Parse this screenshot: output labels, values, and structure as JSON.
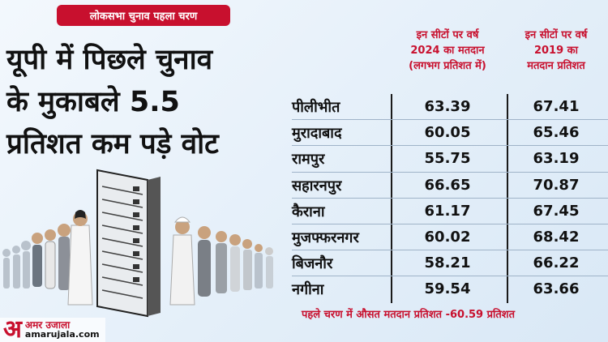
{
  "tag": "लोकसभा चुनाव पहला चरण",
  "headline": [
    "यूपी में पिछले चुनाव",
    "के मुकाबले 5.5",
    "प्रतिशत कम पड़े वोट"
  ],
  "columns": {
    "c1": [
      "इन सीटों पर वर्ष",
      "2024 का मतदान",
      "(लगभग प्रतिशत में)"
    ],
    "c2": [
      "इन सीटों पर वर्ष",
      "2019 का",
      "मतदान प्रतिशत"
    ]
  },
  "footer": "पहले चरण में औसत मतदान प्रतिशत -60.59 प्रतिशत",
  "logo": {
    "mark": "अ",
    "hindi": "अमर उजाला",
    "site": "amarujala.com"
  },
  "colors": {
    "accent": "#c8102e",
    "text": "#111111"
  },
  "chart_data": {
    "type": "table",
    "categories": [
      "पीलीभीत",
      "मुरादाबाद",
      "रामपुर",
      "सहारनपुर",
      "कैराना",
      "मुजफ्फरनगर",
      "बिजनौर",
      "नगीना"
    ],
    "series": [
      {
        "name": "इन सीटों पर वर्ष 2024 का मतदान (लगभग प्रतिशत में)",
        "values": [
          "63.39",
          "60.05",
          "55.75",
          "66.65",
          "61.17",
          "60.02",
          "58.21",
          "59.54"
        ]
      },
      {
        "name": "इन सीटों पर वर्ष 2019 का मतदान प्रतिशत",
        "values": [
          "67.41",
          "65.46",
          "63.19",
          "70.87",
          "67.45",
          "68.42",
          "66.22",
          "63.66"
        ]
      }
    ]
  }
}
